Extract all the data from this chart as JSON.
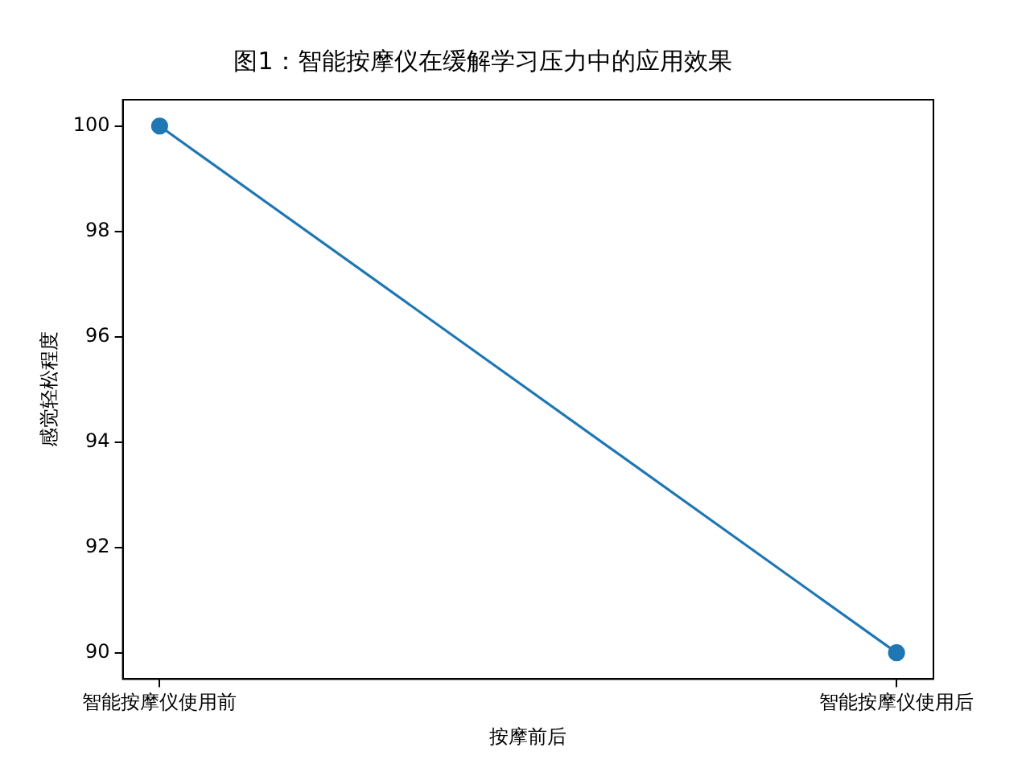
{
  "chart_data": {
    "type": "line",
    "title": "图1：智能按摩仪在缓解学习压力中的应用效果",
    "xlabel": "按摩前后",
    "ylabel": "感觉轻松程度",
    "categories": [
      "智能按摩仪使用前",
      "智能按摩仪使用后"
    ],
    "series": [
      {
        "color": "#1f77b4",
        "values": [
          100,
          90
        ]
      }
    ],
    "ylim": [
      89.5,
      100.5
    ],
    "yticks": [
      90,
      92,
      94,
      96,
      98,
      100
    ],
    "grid": false,
    "legend": false,
    "marker": "circle",
    "line_style": "solid"
  }
}
